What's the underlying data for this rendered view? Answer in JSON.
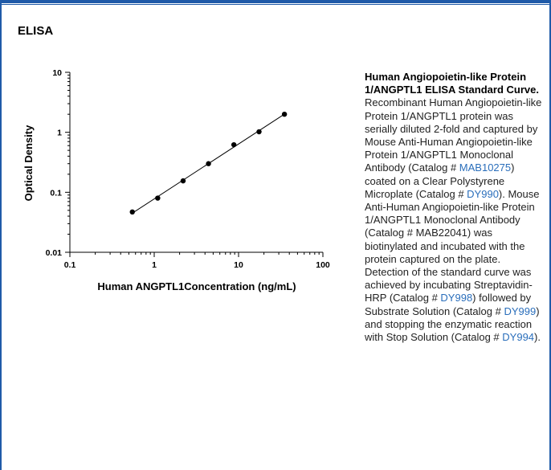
{
  "section_title": "ELISA",
  "chart_data": {
    "type": "scatter",
    "title": "",
    "xlabel": "Human ANGPTL1Concentration (ng/mL)",
    "ylabel": "Optical Density",
    "x_scale": "log",
    "y_scale": "log",
    "xlim": [
      0.1,
      100
    ],
    "ylim": [
      0.01,
      10
    ],
    "x_ticks": [
      "0.1",
      "1",
      "10",
      "100"
    ],
    "y_ticks": [
      "0.01",
      "0.1",
      "1",
      "10"
    ],
    "grid": false,
    "fit_line": true,
    "points": [
      {
        "x": 0.55,
        "y": 0.047
      },
      {
        "x": 1.1,
        "y": 0.08
      },
      {
        "x": 2.2,
        "y": 0.155
      },
      {
        "x": 4.4,
        "y": 0.3
      },
      {
        "x": 8.8,
        "y": 0.62
      },
      {
        "x": 17.5,
        "y": 1.02
      },
      {
        "x": 35,
        "y": 2.0
      }
    ]
  },
  "caption": {
    "title": "Human Angiopoietin-like Protein 1/ANGPTL1 ELISA Standard Curve.",
    "t1": " Recombinant Human Angiopoietin-like Protein 1/ANGPTL1 protein was serially diluted 2-fold and captured by Mouse Anti-Human Angiopoietin-like Protein 1/ANGPTL1 Monoclonal Antibody (Catalog # ",
    "l1": "MAB10275",
    "t2": ") coated on a Clear Polystyrene Microplate (Catalog # ",
    "l2": "DY990",
    "t3": "). Mouse Anti-Human Angiopoietin-like Protein 1/ANGPTL1 Monoclonal Antibody (Catalog # MAB22041) was biotinylated and incubated with the protein captured on the plate. Detection of the standard curve was achieved by incubating Streptavidin-HRP (Catalog # ",
    "l3": "DY998",
    "t4": ") followed by Substrate Solution (Catalog # ",
    "l4": "DY999",
    "t5": ") and stopping the enzymatic reaction with Stop Solution (Catalog # ",
    "l5": "DY994",
    "t6": ")."
  },
  "colors": {
    "border": "#1f5aa8",
    "link": "#2a6ebb"
  }
}
